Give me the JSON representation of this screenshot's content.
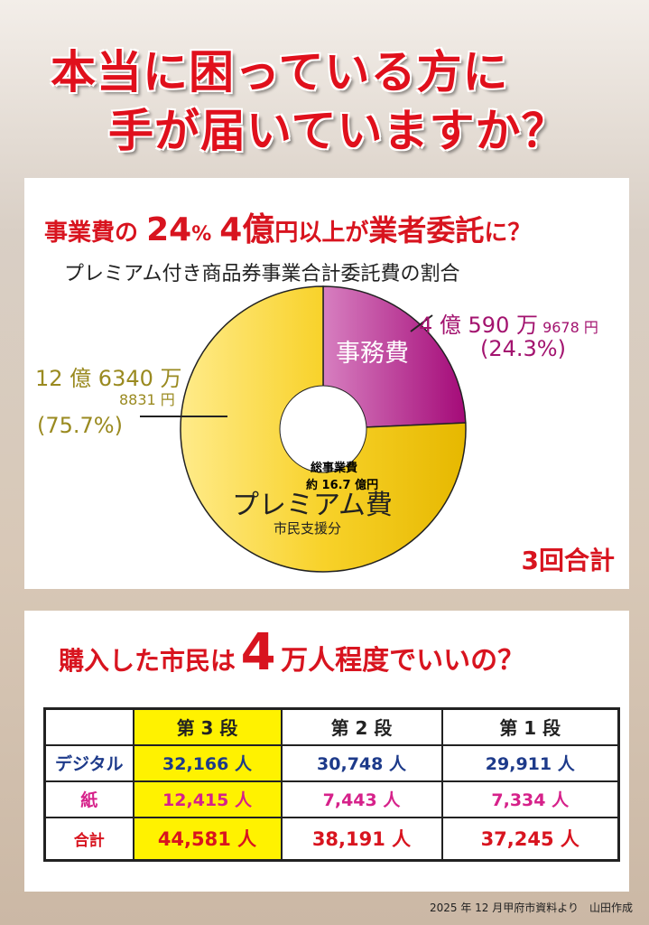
{
  "headline": {
    "line1": "本当に困っている方に",
    "line2": "手が届いていますか？"
  },
  "section1": {
    "headline_a": "事業費の",
    "headline_b": "24",
    "headline_c": "%",
    "headline_d": "4億",
    "headline_e": "円以上が",
    "headline_f": "業者委託",
    "headline_g": "に？",
    "subtitle": "プレミアム付き商品券事業合計委託費の割合",
    "center_l1": "総事業費",
    "center_l2": "約 16.7 億円",
    "note": "3回合計"
  },
  "chart_data": {
    "type": "pie",
    "variant": "donut",
    "title": "プレミアム付き商品券事業合計委託費の割合",
    "total_label": "総事業費 約16.7億円",
    "slices": [
      {
        "name": "事務費",
        "value_yen": 405909678,
        "percent": 24.3,
        "color": "#b0107a",
        "amount_l1": "4 億 590 万",
        "amount_l2": "9678 円",
        "percent_label": "(24.3%)"
      },
      {
        "name": "プレミアム費",
        "sublabel": "市民支援分",
        "value_yen": 1263408831,
        "percent": 75.7,
        "color": "#f3c400",
        "amount_l1": "12 億 6340 万",
        "amount_l2": "8831 円",
        "percent_label": "(75.7%)"
      }
    ]
  },
  "section2": {
    "headline_a": "購入した市民は",
    "headline_b": "4",
    "headline_c": "万人程度でいいの？",
    "table": {
      "headers": [
        "",
        "第 3 段",
        "第 2 段",
        "第 1 段"
      ],
      "rows": [
        {
          "label": "デジタル",
          "values": [
            "32,166 人",
            "30,748 人",
            "29,911 人"
          ]
        },
        {
          "label": "紙",
          "values": [
            "12,415 人",
            "7,443 人",
            "7,334 人"
          ]
        },
        {
          "label": "合計",
          "values": [
            "44,581 人",
            "38,191 人",
            "37,245 人"
          ]
        }
      ]
    }
  },
  "footer": "2025 年 12 月甲府市資料より　山田作成"
}
